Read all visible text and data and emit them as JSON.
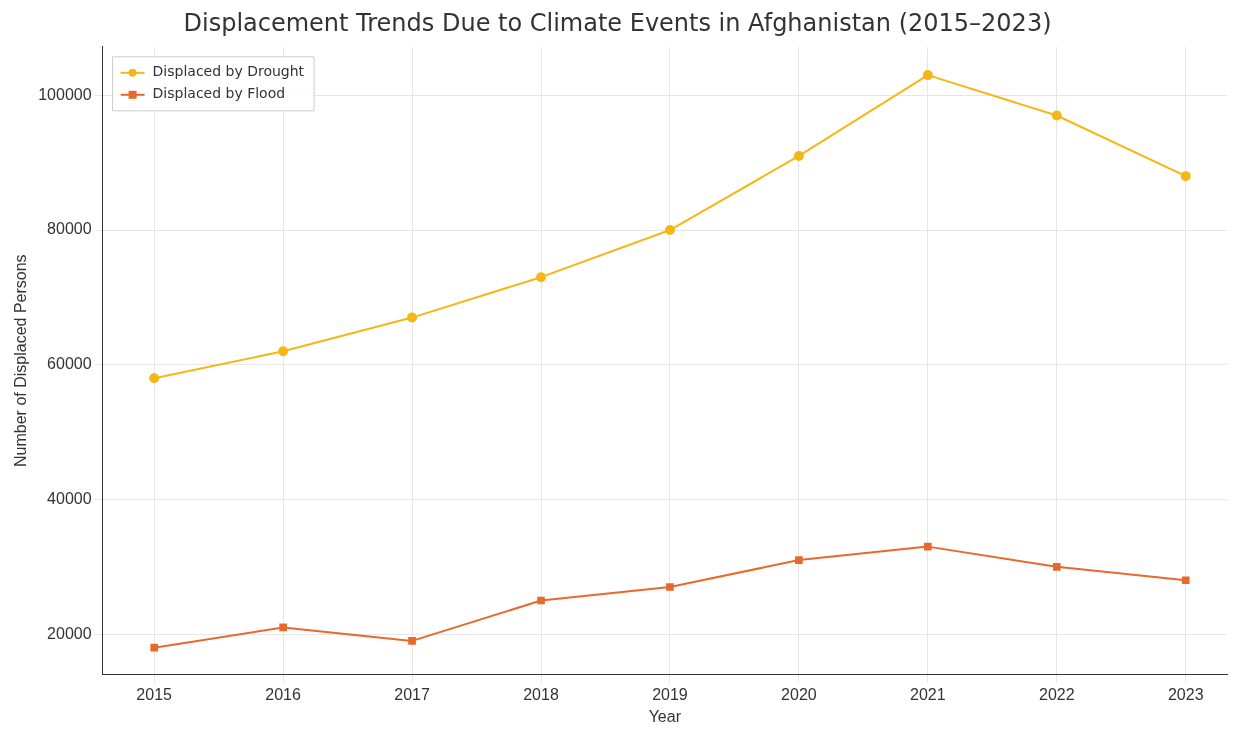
{
  "chart_data": {
    "type": "line",
    "title": "Displacement Trends Due to Climate Events in Afghanistan (2015–2023)",
    "xlabel": "Year",
    "ylabel": "Number of Displaced Persons",
    "x": [
      2015,
      2016,
      2017,
      2018,
      2019,
      2020,
      2021,
      2022,
      2023
    ],
    "series": [
      {
        "name": "Displaced by Drought",
        "color": "#f5b716",
        "marker": "circle",
        "values": [
          58000,
          62000,
          67000,
          73000,
          80000,
          91000,
          103000,
          97000,
          88000
        ]
      },
      {
        "name": "Displaced by Flood",
        "color": "#e8692b",
        "marker": "square",
        "values": [
          18000,
          21000,
          19000,
          25000,
          27000,
          31000,
          33000,
          30000,
          28000
        ]
      }
    ],
    "xlim": [
      2014.6,
      2023.32
    ],
    "xticks": [
      2015,
      2016,
      2017,
      2018,
      2019,
      2020,
      2021,
      2022,
      2023
    ],
    "ylim": [
      14000,
      107200
    ],
    "yticks": [
      20000,
      40000,
      60000,
      80000,
      100000
    ],
    "grid": true,
    "legend": "top left",
    "line_style": "solid"
  }
}
